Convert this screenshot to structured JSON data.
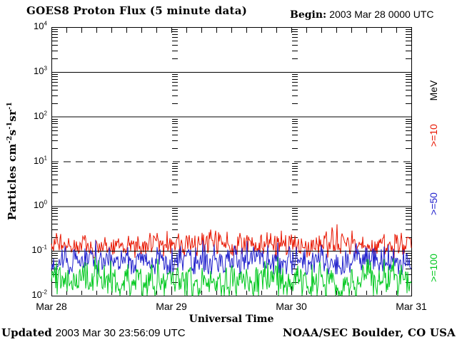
{
  "header": {
    "title": "GOES8 Proton Flux (5 minute data)",
    "begin_label": "Begin:",
    "begin_value": "2003 Mar 28 0000 UTC"
  },
  "footer": {
    "updated_label": "Updated",
    "updated_value": "2003 Mar 30 23:56:09 UTC",
    "credit": "NOAA/SEC Boulder, CO USA"
  },
  "chart_data": {
    "type": "line",
    "title": "GOES8 Proton Flux (5 minute data)",
    "xlabel": "Universal Time",
    "ylabel_parts": [
      {
        "text": "Particles cm"
      },
      {
        "sup": "-2"
      },
      {
        "text": "s"
      },
      {
        "sup": "-1"
      },
      {
        "text": "sr"
      },
      {
        "sup": "-1"
      }
    ],
    "yscale": "log",
    "ylim": [
      0.01,
      10000
    ],
    "ytick_exponents": [
      4,
      3,
      2,
      1,
      0,
      -1,
      -2
    ],
    "solid_grid_exponents": [
      3,
      2,
      0,
      -1
    ],
    "dashed_grid_exponents": [
      1
    ],
    "xticks": [
      "Mar 28",
      "Mar 29",
      "Mar 30",
      "Mar 31"
    ],
    "x_days": 3,
    "hours_per_minor_tick": 3,
    "day_gridline_style": "minor-log-dash-column",
    "right_axis_title": "MeV",
    "legend_position": "right-rotated",
    "grid_color": "#000000",
    "series": [
      {
        "label": ">=10",
        "threshold_mev": 10,
        "color": "#e81500",
        "baseline_flux": 0.13,
        "flux_range": [
          0.07,
          0.47
        ],
        "noise_sigma_decades": 0.16,
        "spike_up_prob": 0.1,
        "spike_up_decades": 0.38,
        "spike_down_prob": 0.05,
        "spike_down_decades": 0.18,
        "seed": 11
      },
      {
        "label": ">=50",
        "threshold_mev": 50,
        "color": "#2121cc",
        "baseline_flux": 0.06,
        "flux_range": [
          0.03,
          0.18
        ],
        "noise_sigma_decades": 0.2,
        "spike_up_prob": 0.09,
        "spike_up_decades": 0.3,
        "spike_down_prob": 0.06,
        "spike_down_decades": 0.2,
        "seed": 22
      },
      {
        "label": ">=100",
        "threshold_mev": 100,
        "color": "#00c81e",
        "baseline_flux": 0.022,
        "flux_range": [
          0.01,
          0.09
        ],
        "noise_sigma_decades": 0.24,
        "spike_up_prob": 0.08,
        "spike_up_decades": 0.32,
        "spike_down_prob": 0.15,
        "spike_down_decades": 0.4,
        "seed": 33
      }
    ]
  }
}
